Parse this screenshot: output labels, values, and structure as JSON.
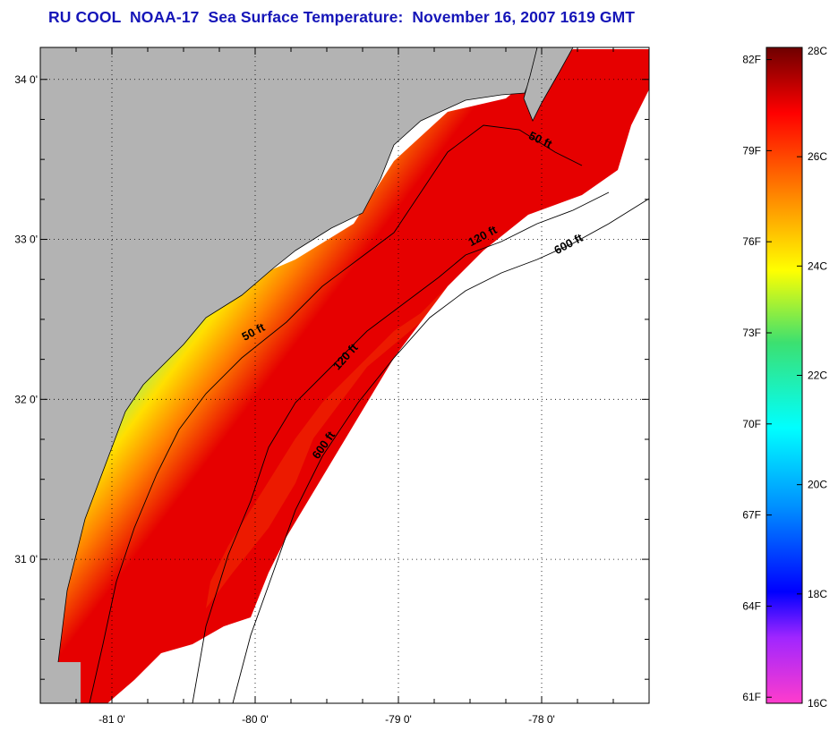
{
  "title": "RU COOL  NOAA-17  Sea Surface Temperature:  November 16, 2007 1619 GMT",
  "map": {
    "land_color": "#b3b3b3",
    "no_data_color": "#ffffff",
    "lon_range": [
      -81.5,
      -77.25
    ],
    "lat_range": [
      30.1,
      34.2
    ],
    "lon_ticks": [
      {
        "value": -81,
        "label": "-81 0'"
      },
      {
        "value": -80,
        "label": "-80 0'"
      },
      {
        "value": -79,
        "label": "-79 0'"
      },
      {
        "value": -78,
        "label": "-78 0'"
      }
    ],
    "lat_ticks": [
      {
        "value": 34,
        "label": "34 0'"
      },
      {
        "value": 33,
        "label": "33 0'"
      },
      {
        "value": 32,
        "label": "32 0'"
      },
      {
        "value": 31,
        "label": "31 0'"
      }
    ],
    "contour_labels": [
      {
        "text": "50 ft",
        "lon": -78.02,
        "lat": 33.6,
        "angle": 25
      },
      {
        "text": "120 ft",
        "lon": -78.4,
        "lat": 33.0,
        "angle": -28
      },
      {
        "text": "600 ft",
        "lon": -77.8,
        "lat": 32.95,
        "angle": -28
      },
      {
        "text": "50 ft",
        "lon": -80.0,
        "lat": 32.4,
        "angle": -28
      },
      {
        "text": "120 ft",
        "lon": -79.35,
        "lat": 32.25,
        "angle": -48
      },
      {
        "text": "600 ft",
        "lon": -79.5,
        "lat": 31.7,
        "angle": -55
      }
    ]
  },
  "colorbar": {
    "min_c": 16,
    "max_c": 28,
    "celsius_ticks": [
      "16C",
      "18C",
      "20C",
      "22C",
      "24C",
      "26C",
      "28C"
    ],
    "fahrenheit_ticks": [
      "61F",
      "64F",
      "67F",
      "70F",
      "73F",
      "76F",
      "79F",
      "82F"
    ],
    "celsius_values": [
      16,
      18,
      20,
      22,
      24,
      26,
      28
    ],
    "fahrenheit_values": [
      61,
      64,
      67,
      70,
      73,
      76,
      79,
      82
    ],
    "colors": [
      "#ff3ccc",
      "#a026ff",
      "#0000ff",
      "#0090ff",
      "#00ffff",
      "#3ce070",
      "#ffff00",
      "#ff8000",
      "#ff0000",
      "#6e0000"
    ]
  }
}
